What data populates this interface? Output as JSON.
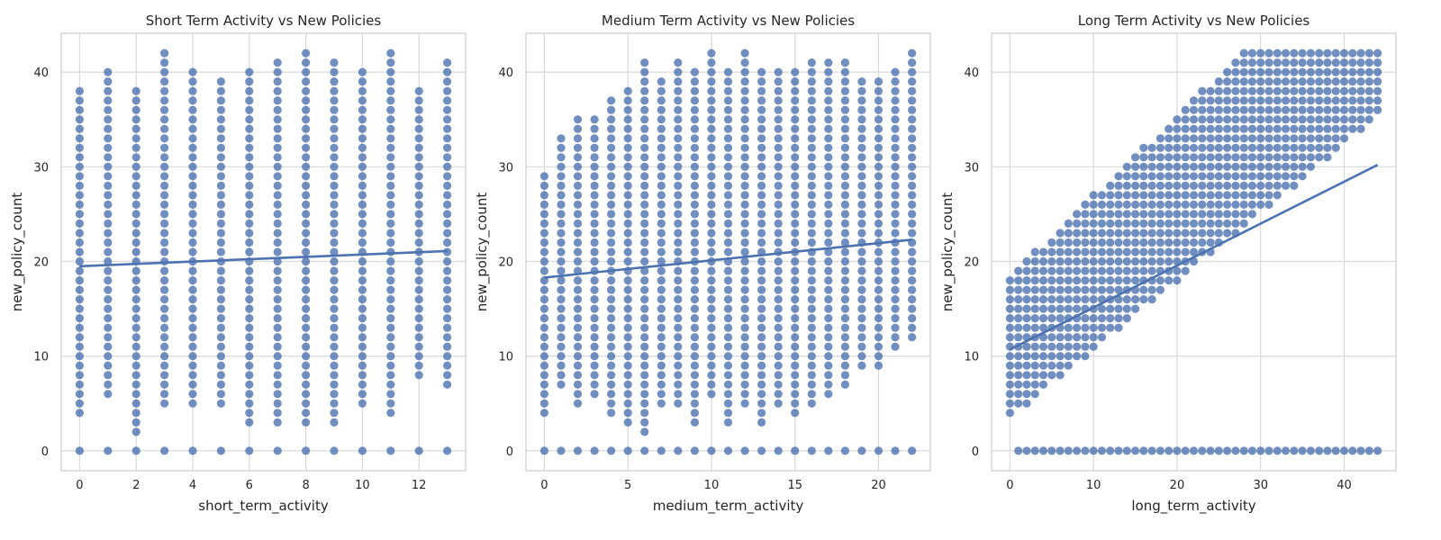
{
  "chart_data": [
    {
      "type": "scatter",
      "title": "Short Term Activity vs New Policies",
      "xlabel": "short_term_activity",
      "ylabel": "new_policy_count",
      "xlim": [
        -0.65,
        13.65
      ],
      "ylim": [
        -2.1,
        44.1
      ],
      "xticks": [
        0,
        2,
        4,
        6,
        8,
        10,
        12
      ],
      "yticks": [
        0,
        10,
        20,
        30,
        40
      ],
      "grid": true,
      "point_color": "#4c72b0",
      "x_values": [
        0,
        1,
        2,
        3,
        4,
        5,
        6,
        7,
        8,
        9,
        10,
        11,
        12,
        13
      ],
      "columns": [
        {
          "x": 0,
          "y_min": 4,
          "y_max": 38,
          "zero": true
        },
        {
          "x": 1,
          "y_min": 6,
          "y_max": 40,
          "zero": true
        },
        {
          "x": 2,
          "y_min": 2,
          "y_max": 38,
          "zero": true
        },
        {
          "x": 3,
          "y_min": 5,
          "y_max": 42,
          "zero": true
        },
        {
          "x": 4,
          "y_min": 5,
          "y_max": 40,
          "zero": true
        },
        {
          "x": 5,
          "y_min": 5,
          "y_max": 39,
          "zero": true
        },
        {
          "x": 6,
          "y_min": 3,
          "y_max": 40,
          "zero": true
        },
        {
          "x": 7,
          "y_min": 3,
          "y_max": 41,
          "zero": true
        },
        {
          "x": 8,
          "y_min": 3,
          "y_max": 42,
          "zero": true
        },
        {
          "x": 9,
          "y_min": 3,
          "y_max": 41,
          "zero": true
        },
        {
          "x": 10,
          "y_min": 5,
          "y_max": 40,
          "zero": true
        },
        {
          "x": 11,
          "y_min": 4,
          "y_max": 42,
          "zero": true
        },
        {
          "x": 12,
          "y_min": 8,
          "y_max": 38,
          "zero": true
        },
        {
          "x": 13,
          "y_min": 7,
          "y_max": 41,
          "zero": true
        }
      ],
      "regression": {
        "x": [
          0,
          13
        ],
        "y": [
          19.5,
          21.1
        ]
      }
    },
    {
      "type": "scatter",
      "title": "Medium Term Activity vs New Policies",
      "xlabel": "medium_term_activity",
      "ylabel": "new_policy_count",
      "xlim": [
        -1.1,
        23.1
      ],
      "ylim": [
        -2.1,
        44.1
      ],
      "xticks": [
        0,
        5,
        10,
        15,
        20
      ],
      "yticks": [
        0,
        10,
        20,
        30,
        40
      ],
      "grid": true,
      "point_color": "#4c72b0",
      "columns": [
        {
          "x": 0,
          "y_min": 4,
          "y_max": 29,
          "zero": true
        },
        {
          "x": 1,
          "y_min": 7,
          "y_max": 33,
          "zero": true
        },
        {
          "x": 2,
          "y_min": 5,
          "y_max": 35,
          "zero": true
        },
        {
          "x": 3,
          "y_min": 6,
          "y_max": 35,
          "zero": true
        },
        {
          "x": 4,
          "y_min": 4,
          "y_max": 37,
          "zero": true
        },
        {
          "x": 5,
          "y_min": 3,
          "y_max": 38,
          "zero": true
        },
        {
          "x": 6,
          "y_min": 2,
          "y_max": 41,
          "zero": true
        },
        {
          "x": 7,
          "y_min": 5,
          "y_max": 39,
          "zero": true
        },
        {
          "x": 8,
          "y_min": 5,
          "y_max": 41,
          "zero": true
        },
        {
          "x": 9,
          "y_min": 3,
          "y_max": 40,
          "zero": true
        },
        {
          "x": 10,
          "y_min": 6,
          "y_max": 42,
          "zero": true
        },
        {
          "x": 11,
          "y_min": 3,
          "y_max": 40,
          "zero": true
        },
        {
          "x": 12,
          "y_min": 5,
          "y_max": 42,
          "zero": true
        },
        {
          "x": 13,
          "y_min": 3,
          "y_max": 40,
          "zero": true
        },
        {
          "x": 14,
          "y_min": 5,
          "y_max": 40,
          "zero": true
        },
        {
          "x": 15,
          "y_min": 4,
          "y_max": 40,
          "zero": true
        },
        {
          "x": 16,
          "y_min": 5,
          "y_max": 41,
          "zero": true
        },
        {
          "x": 17,
          "y_min": 6,
          "y_max": 41,
          "zero": true
        },
        {
          "x": 18,
          "y_min": 7,
          "y_max": 41,
          "zero": true
        },
        {
          "x": 19,
          "y_min": 9,
          "y_max": 39,
          "zero": true
        },
        {
          "x": 20,
          "y_min": 9,
          "y_max": 39,
          "zero": true
        },
        {
          "x": 21,
          "y_min": 11,
          "y_max": 40,
          "zero": true
        },
        {
          "x": 22,
          "y_min": 12,
          "y_max": 42,
          "zero": true
        }
      ],
      "regression": {
        "x": [
          0,
          22
        ],
        "y": [
          18.3,
          22.3
        ]
      }
    },
    {
      "type": "scatter",
      "title": "Long Term Activity vs New Policies",
      "xlabel": "long_term_activity",
      "ylabel": "new_policy_count",
      "xlim": [
        -2.2,
        46.2
      ],
      "ylim": [
        -2.1,
        44.1
      ],
      "xticks": [
        0,
        10,
        20,
        30,
        40
      ],
      "yticks": [
        0,
        10,
        20,
        30,
        40
      ],
      "grid": true,
      "point_color": "#4c72b0",
      "band": {
        "x_min": 0,
        "x_max": 44,
        "lower_at_x0": 8,
        "lower_slope": 0.72,
        "upper_at_x0": 18,
        "upper_slope": 0.85,
        "y_cap": 42
      },
      "zero_row": {
        "x_min": 1,
        "x_max": 44
      },
      "regression": {
        "x": [
          0,
          44
        ],
        "y": [
          10.7,
          30.2
        ]
      }
    }
  ]
}
